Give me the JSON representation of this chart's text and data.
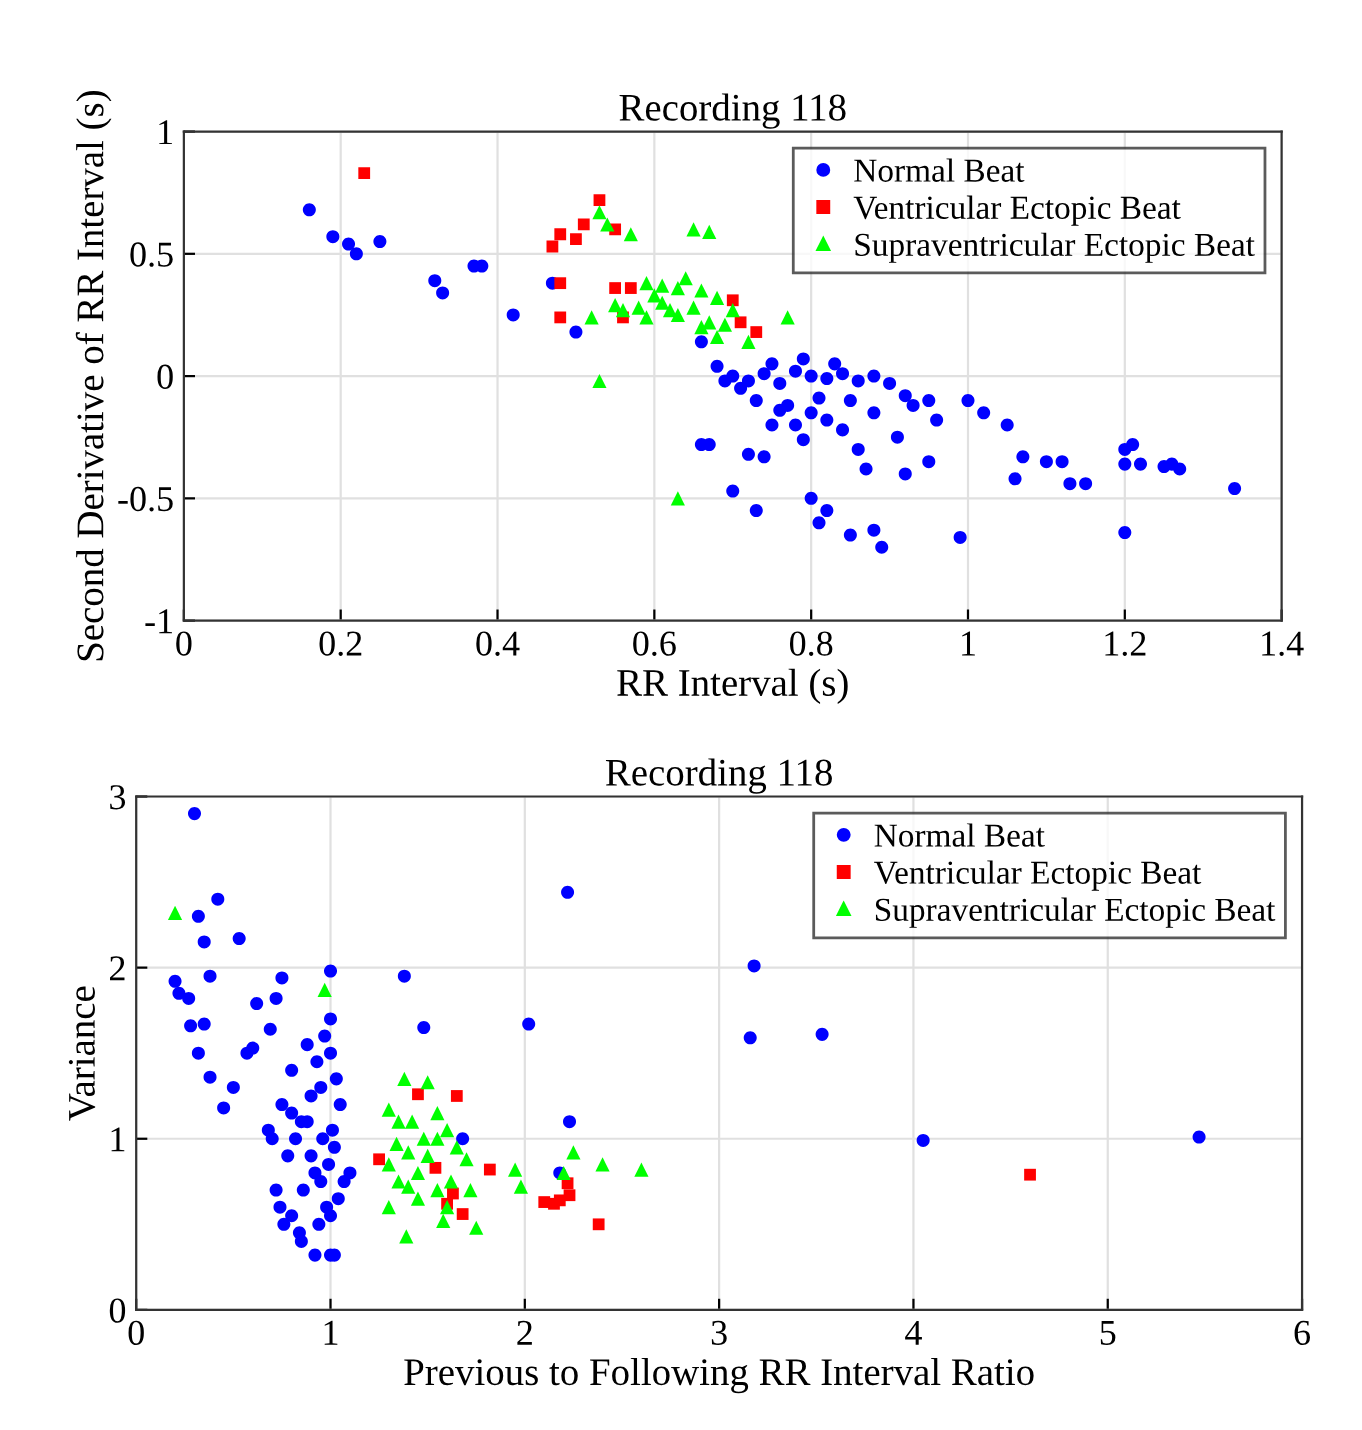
{
  "chart_data": [
    {
      "type": "scatter",
      "title": "Recording 118",
      "xlabel": "RR Interval (s)",
      "ylabel": "Second Derivative of RR Interval (s)",
      "xlim": [
        0,
        1.4
      ],
      "xticks": [
        0,
        0.2,
        0.4,
        0.6,
        0.8,
        1,
        1.2,
        1.4
      ],
      "ylim": [
        -1,
        1
      ],
      "yticks": [
        -1,
        -0.5,
        0,
        0.5,
        1
      ],
      "grid": true,
      "legend": "top right",
      "series": [
        {
          "name": "Normal Beat",
          "color": "#0000ff",
          "marker": "circle",
          "x": [
            0.16,
            0.19,
            0.21,
            0.22,
            0.25,
            0.32,
            0.33,
            0.37,
            0.38,
            0.42,
            0.47,
            0.5,
            0.66,
            0.68,
            0.7,
            0.72,
            0.74,
            0.76,
            0.78,
            0.8,
            0.82,
            0.84,
            0.86,
            0.88,
            0.9,
            0.79,
            0.83,
            0.75,
            0.73,
            0.77,
            0.81,
            0.85,
            0.78,
            0.82,
            0.75,
            0.79,
            0.84,
            0.88,
            0.86,
            0.91,
            0.93,
            0.96,
            0.71,
            0.69,
            0.87,
            0.92,
            0.95,
            0.76,
            0.8,
            0.92,
            0.95,
            1.0,
            1.02,
            1.05,
            1.07,
            1.1,
            1.12,
            1.2,
            1.21,
            1.2,
            1.22,
            1.25,
            1.26,
            1.27,
            1.34,
            1.13,
            1.15,
            1.06,
            0.99,
            1.2,
            0.88,
            0.8,
            0.81,
            0.82,
            0.85,
            0.89,
            0.73,
            0.7,
            0.72,
            0.74,
            0.66,
            0.67
          ],
          "values": [
            0.68,
            0.57,
            0.54,
            0.5,
            0.55,
            0.39,
            0.34,
            0.45,
            0.45,
            0.25,
            0.38,
            0.18,
            0.14,
            0.04,
            0.0,
            -0.02,
            0.01,
            -0.03,
            0.02,
            0.0,
            -0.01,
            0.01,
            -0.02,
            0.0,
            -0.03,
            0.07,
            0.05,
            0.05,
            -0.1,
            -0.12,
            -0.09,
            -0.1,
            -0.2,
            -0.18,
            -0.2,
            -0.26,
            -0.22,
            -0.15,
            -0.3,
            -0.25,
            -0.12,
            -0.18,
            -0.05,
            -0.02,
            -0.38,
            -0.4,
            -0.35,
            -0.14,
            -0.15,
            -0.08,
            -0.1,
            -0.1,
            -0.15,
            -0.2,
            -0.33,
            -0.35,
            -0.35,
            -0.3,
            -0.28,
            -0.36,
            -0.36,
            -0.37,
            -0.36,
            -0.38,
            -0.46,
            -0.44,
            -0.44,
            -0.42,
            -0.66,
            -0.64,
            -0.63,
            -0.5,
            -0.6,
            -0.55,
            -0.65,
            -0.7,
            -0.55,
            -0.47,
            -0.32,
            -0.33,
            -0.28,
            -0.28
          ]
        },
        {
          "name": "Ventricular Ectopic Beat",
          "color": "#ff0000",
          "marker": "square",
          "x": [
            0.23,
            0.47,
            0.48,
            0.5,
            0.51,
            0.53,
            0.55,
            0.48,
            0.48,
            0.55,
            0.57,
            0.56,
            0.7,
            0.71,
            0.73
          ],
          "values": [
            0.83,
            0.53,
            0.58,
            0.56,
            0.62,
            0.72,
            0.6,
            0.38,
            0.24,
            0.36,
            0.36,
            0.24,
            0.31,
            0.22,
            0.18
          ]
        },
        {
          "name": "Supraventricular Ectopic Beat",
          "color": "#00ff00",
          "marker": "triangle",
          "x": [
            0.53,
            0.54,
            0.57,
            0.65,
            0.67,
            0.52,
            0.55,
            0.58,
            0.6,
            0.63,
            0.64,
            0.66,
            0.68,
            0.7,
            0.72,
            0.77,
            0.62,
            0.56,
            0.59,
            0.61,
            0.63,
            0.65,
            0.67,
            0.69,
            0.59,
            0.61,
            0.53,
            0.63,
            0.66,
            0.68
          ],
          "values": [
            0.67,
            0.62,
            0.58,
            0.6,
            0.59,
            0.24,
            0.29,
            0.28,
            0.33,
            0.36,
            0.4,
            0.35,
            0.32,
            0.27,
            0.14,
            0.24,
            0.27,
            0.27,
            0.24,
            0.3,
            0.25,
            0.28,
            0.22,
            0.21,
            0.38,
            0.37,
            -0.02,
            -0.5,
            0.2,
            0.16
          ]
        }
      ]
    },
    {
      "type": "scatter",
      "title": "Recording 118",
      "xlabel": "Previous to Following RR Interval Ratio",
      "ylabel": "Variance",
      "xlim": [
        0,
        6
      ],
      "xticks": [
        0,
        1,
        2,
        3,
        4,
        5,
        6
      ],
      "ylim": [
        0,
        3
      ],
      "yticks": [
        0,
        1,
        2,
        3
      ],
      "grid": true,
      "legend": "top right",
      "series": [
        {
          "name": "Normal Beat",
          "color": "#0000ff",
          "marker": "circle",
          "x": [
            0.3,
            0.42,
            0.32,
            0.2,
            0.35,
            0.53,
            0.38,
            0.22,
            0.27,
            0.28,
            0.35,
            0.38,
            0.32,
            0.57,
            0.62,
            0.72,
            0.75,
            0.69,
            0.5,
            0.45,
            0.6,
            1.0,
            1.38,
            1.48,
            2.02,
            2.22,
            2.23,
            1.68,
            3.18,
            3.16,
            3.53,
            4.05,
            5.47,
            2.18,
            0.92,
            1.0,
            1.02,
            0.7,
            0.75,
            0.8,
            0.85,
            0.9,
            0.95,
            1.0,
            1.05,
            1.1,
            0.72,
            0.78,
            0.82,
            0.88,
            0.93,
            0.97,
            1.02,
            1.07,
            0.68,
            0.74,
            0.8,
            0.86,
            0.92,
            0.98,
            1.04,
            0.76,
            0.84,
            0.9,
            0.96,
            1.0,
            1.03,
            0.8,
            0.88,
            0.94,
            0.99,
            1.01,
            0.85,
            0.95,
            1.0
          ],
          "values": [
            2.9,
            2.4,
            2.3,
            1.92,
            2.15,
            2.17,
            1.95,
            1.85,
            1.82,
            1.66,
            1.67,
            1.36,
            1.5,
            1.5,
            1.79,
            1.82,
            1.94,
            1.64,
            1.3,
            1.18,
            1.53,
            1.98,
            1.95,
            1.65,
            1.67,
            2.44,
            1.1,
            1.0,
            2.01,
            1.59,
            1.61,
            0.99,
            1.01,
            0.8,
            0.32,
            0.32,
            0.32,
            1.0,
            1.2,
            1.4,
            1.1,
            0.9,
            1.3,
            1.5,
            1.2,
            0.8,
            0.7,
            0.9,
            1.0,
            1.1,
            1.45,
            1.6,
            0.95,
            0.75,
            1.05,
            0.6,
            0.55,
            0.7,
            0.8,
            0.6,
            0.65,
            0.5,
            0.45,
            1.25,
            1.0,
            1.7,
            1.35,
            1.15,
            1.55,
            0.5,
            0.85,
            1.05,
            0.4,
            0.75,
            0.55
          ]
        },
        {
          "name": "Ventricular Ectopic Beat",
          "color": "#ff0000",
          "marker": "square",
          "x": [
            1.45,
            1.65,
            1.25,
            1.6,
            1.68,
            1.63,
            1.82,
            2.1,
            2.15,
            2.18,
            2.23,
            2.22,
            2.38,
            4.6,
            1.54
          ],
          "values": [
            1.26,
            1.25,
            0.88,
            0.62,
            0.56,
            0.68,
            0.82,
            0.63,
            0.62,
            0.64,
            0.67,
            0.74,
            0.5,
            0.79,
            0.83
          ]
        },
        {
          "name": "Supraventricular Ectopic Beat",
          "color": "#00ff00",
          "marker": "triangle",
          "x": [
            0.2,
            0.97,
            1.38,
            1.5,
            1.3,
            1.35,
            1.42,
            1.55,
            1.48,
            1.6,
            1.65,
            1.7,
            1.3,
            1.35,
            1.3,
            1.4,
            1.45,
            1.55,
            1.6,
            1.58,
            1.72,
            1.39,
            1.75,
            2.4,
            2.6,
            1.95,
            1.98,
            2.25,
            2.2,
            1.5,
            1.45,
            1.4,
            1.55,
            1.62,
            1.34
          ],
          "values": [
            2.32,
            1.87,
            1.35,
            1.33,
            1.17,
            1.1,
            1.1,
            1.15,
            1.0,
            1.05,
            0.95,
            0.88,
            0.85,
            0.75,
            0.6,
            0.72,
            0.65,
            0.7,
            0.6,
            0.52,
            0.7,
            0.43,
            0.48,
            0.85,
            0.82,
            0.82,
            0.72,
            0.92,
            0.8,
            0.9,
            0.8,
            0.92,
            1.0,
            0.75,
            0.97
          ]
        }
      ]
    }
  ]
}
